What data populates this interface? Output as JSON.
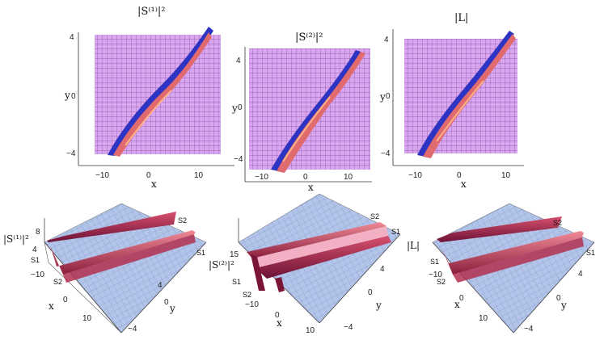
{
  "panels_2d": [
    {
      "title": "|S⁽¹⁾|²",
      "xlabel": "x",
      "ylabel": "y",
      "xticks": [
        "−10",
        "0",
        "10"
      ],
      "yticks": [
        "4",
        "0",
        "−4"
      ]
    },
    {
      "title": "|S⁽²⁾|²",
      "xlabel": "x",
      "ylabel": "y",
      "xticks": [
        "−10",
        "0",
        "10"
      ],
      "yticks": [
        "4",
        "0",
        "−4"
      ]
    },
    {
      "title": "|L|",
      "xlabel": "x",
      "ylabel": "y",
      "xticks": [
        "−10",
        "0",
        "10"
      ],
      "yticks": [
        "4",
        "0",
        "−4"
      ]
    }
  ],
  "panels_3d": [
    {
      "zlabel": "|S⁽¹⁾|²",
      "zticks": [
        "8",
        "4"
      ],
      "xticks": [
        "−10",
        "0",
        "10"
      ],
      "yticks": [
        "4",
        "0",
        "−4"
      ],
      "xlabel": "x",
      "ylabel": "y",
      "soliton_labels": [
        "S2",
        "S1",
        "S1",
        "S2"
      ]
    },
    {
      "zlabel": "|S⁽²⁾|²",
      "zticks": [
        "15"
      ],
      "xticks": [
        "−10",
        "0",
        "10"
      ],
      "yticks": [
        "4",
        "0",
        "−4"
      ],
      "xlabel": "x",
      "ylabel": "y",
      "soliton_labels": [
        "S2",
        "S1",
        "S1",
        "S2"
      ]
    },
    {
      "zlabel": "|L|",
      "zticks": [],
      "xticks": [
        "−10",
        "0",
        "10"
      ],
      "yticks": [
        "4",
        "0",
        "−4"
      ],
      "xlabel": "x",
      "ylabel": "y",
      "soliton_labels": [
        "S2",
        "S1",
        "S1",
        "S2"
      ]
    }
  ],
  "colors": {
    "background": "#d9a8f0",
    "grid": "#5a1f78",
    "ridge_red": "#c23a55",
    "ridge_blue": "#2b2fb8",
    "plane": "#aebfe6"
  }
}
